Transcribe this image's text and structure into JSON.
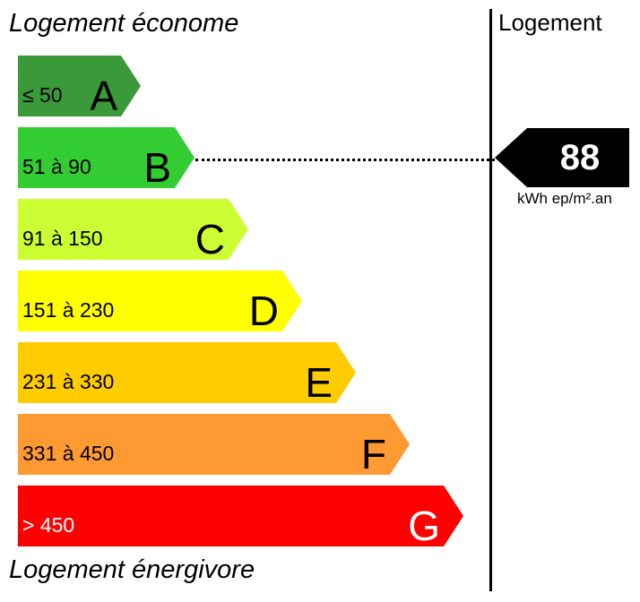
{
  "top_label": "Logement économe",
  "bottom_label": "Logement énergivore",
  "column_header": "Logement",
  "bands": [
    {
      "letter": "A",
      "range": "≤ 50",
      "color": "#3a9a3a",
      "text_color": "#000000"
    },
    {
      "letter": "B",
      "range": "51 à 90",
      "color": "#33cc33",
      "text_color": "#000000"
    },
    {
      "letter": "C",
      "range": "91 à 150",
      "color": "#ccff33",
      "text_color": "#000000"
    },
    {
      "letter": "D",
      "range": "151 à 230",
      "color": "#ffff00",
      "text_color": "#000000"
    },
    {
      "letter": "E",
      "range": "231 à 330",
      "color": "#ffcc00",
      "text_color": "#000000"
    },
    {
      "letter": "F",
      "range": "331 à 450",
      "color": "#ff9a33",
      "text_color": "#000000"
    },
    {
      "letter": "G",
      "range": "> 450",
      "color": "#ff0000",
      "text_color": "#ffffff"
    }
  ],
  "rating": {
    "value": "88",
    "band": "B",
    "unit": "kWh ep/m².an",
    "marker_color": "#000000",
    "value_color": "#ffffff"
  }
}
